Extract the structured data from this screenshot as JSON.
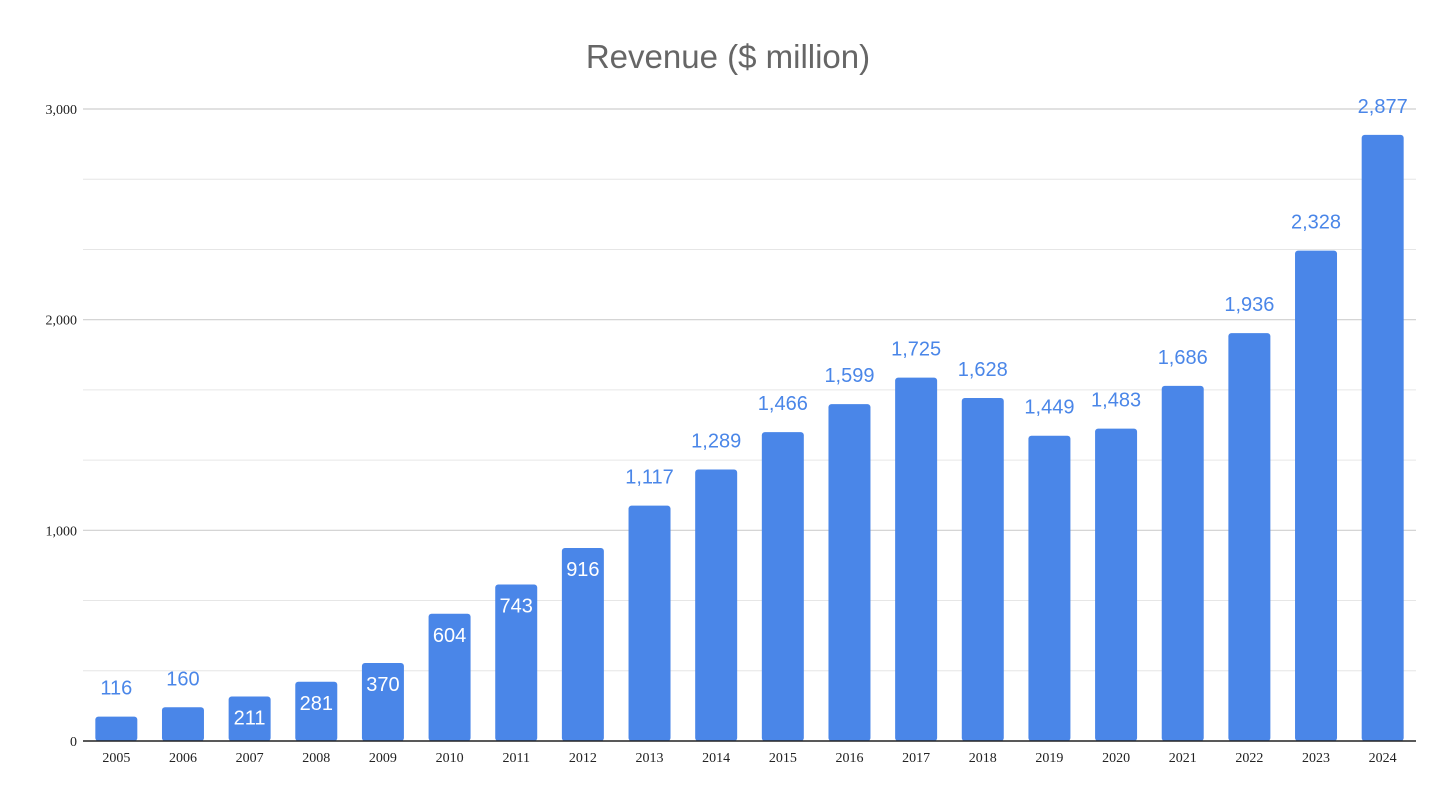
{
  "chart_data": {
    "type": "bar",
    "title": "Revenue ($ million)",
    "xlabel": "",
    "ylabel": "",
    "ylim": [
      0,
      3000
    ],
    "yticks": [
      0,
      1000,
      2000,
      3000
    ],
    "ytick_labels": [
      "0",
      "1,000",
      "2,000",
      "3,000"
    ],
    "grid": true,
    "categories": [
      "2005",
      "2006",
      "2007",
      "2008",
      "2009",
      "2010",
      "2011",
      "2012",
      "2013",
      "2014",
      "2015",
      "2016",
      "2017",
      "2018",
      "2019",
      "2020",
      "2021",
      "2022",
      "2023",
      "2024"
    ],
    "values": [
      116,
      160,
      211,
      281,
      370,
      604,
      743,
      916,
      1117,
      1289,
      1466,
      1599,
      1725,
      1628,
      1449,
      1483,
      1686,
      1936,
      2328,
      2877
    ],
    "value_labels": [
      "116",
      "160",
      "211",
      "281",
      "370",
      "604",
      "743",
      "916",
      "1,117",
      "1,289",
      "1,466",
      "1,599",
      "1,725",
      "1,628",
      "1,449",
      "1,483",
      "1,686",
      "1,936",
      "2,328",
      "2,877"
    ],
    "bar_color": "#4a86e8",
    "label_color_outside": "#4a86e8",
    "label_color_inside": "#ffffff"
  }
}
